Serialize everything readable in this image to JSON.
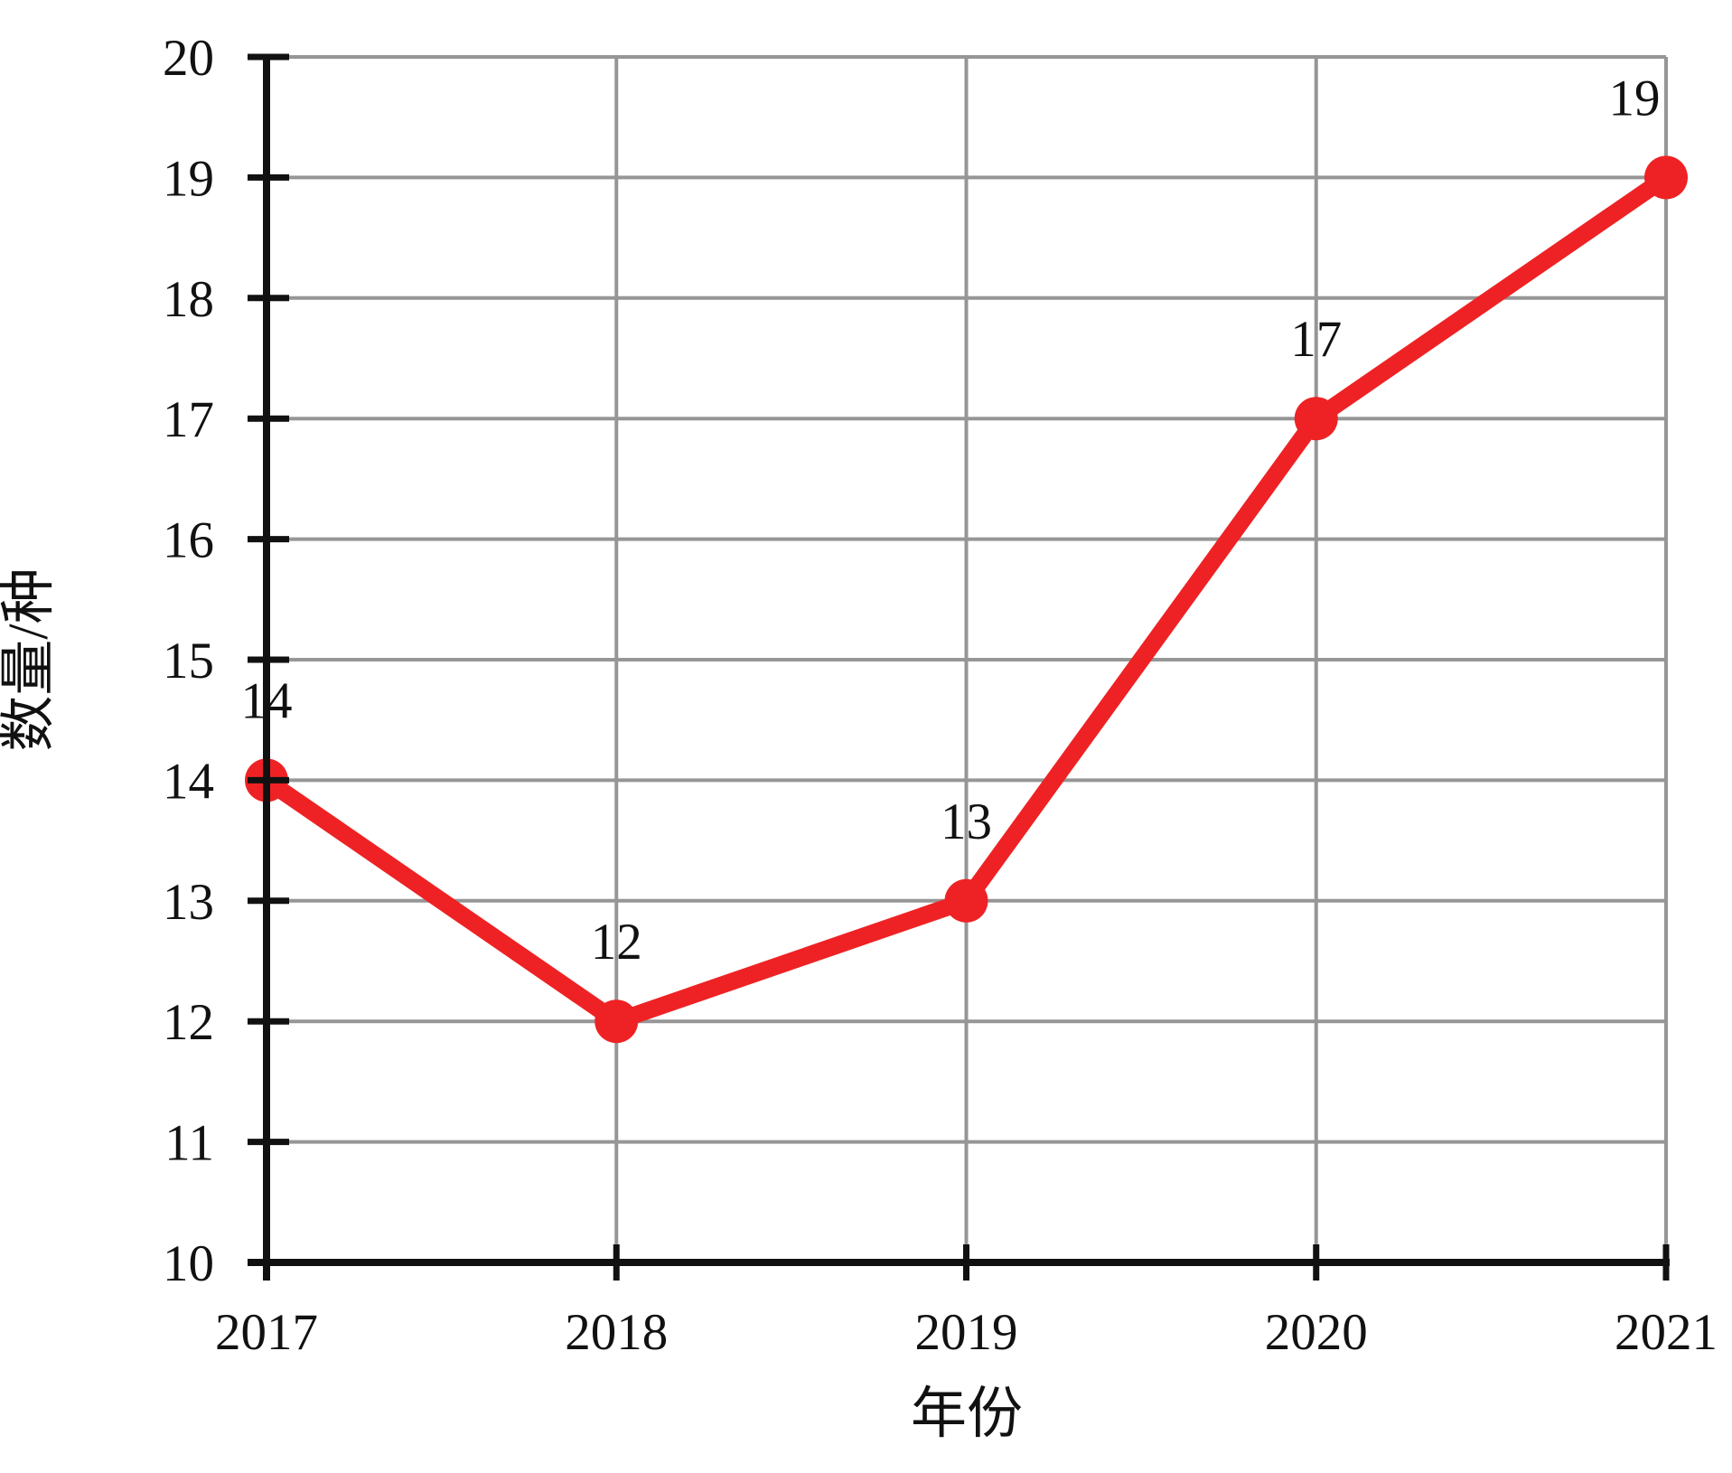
{
  "chart_data": {
    "type": "line",
    "title": "",
    "categories": [
      "2017",
      "2018",
      "2019",
      "2020",
      "2021"
    ],
    "series": [
      {
        "name": "数量",
        "values": [
          14,
          12,
          13,
          17,
          19
        ]
      }
    ],
    "data_labels": [
      "14",
      "12",
      "13",
      "17",
      "19"
    ],
    "xlabel": "年份",
    "ylabel": "数量/种",
    "ylim": [
      10,
      20
    ],
    "ytick_step": 1,
    "yticks": [
      "10",
      "11",
      "12",
      "13",
      "14",
      "15",
      "16",
      "17",
      "18",
      "19",
      "20"
    ],
    "grid": true,
    "legend": "none",
    "colors": {
      "line": "#ee2224",
      "marker": "#ee2224",
      "grid": "#969696",
      "axis": "#111111",
      "text": "#111111"
    }
  }
}
